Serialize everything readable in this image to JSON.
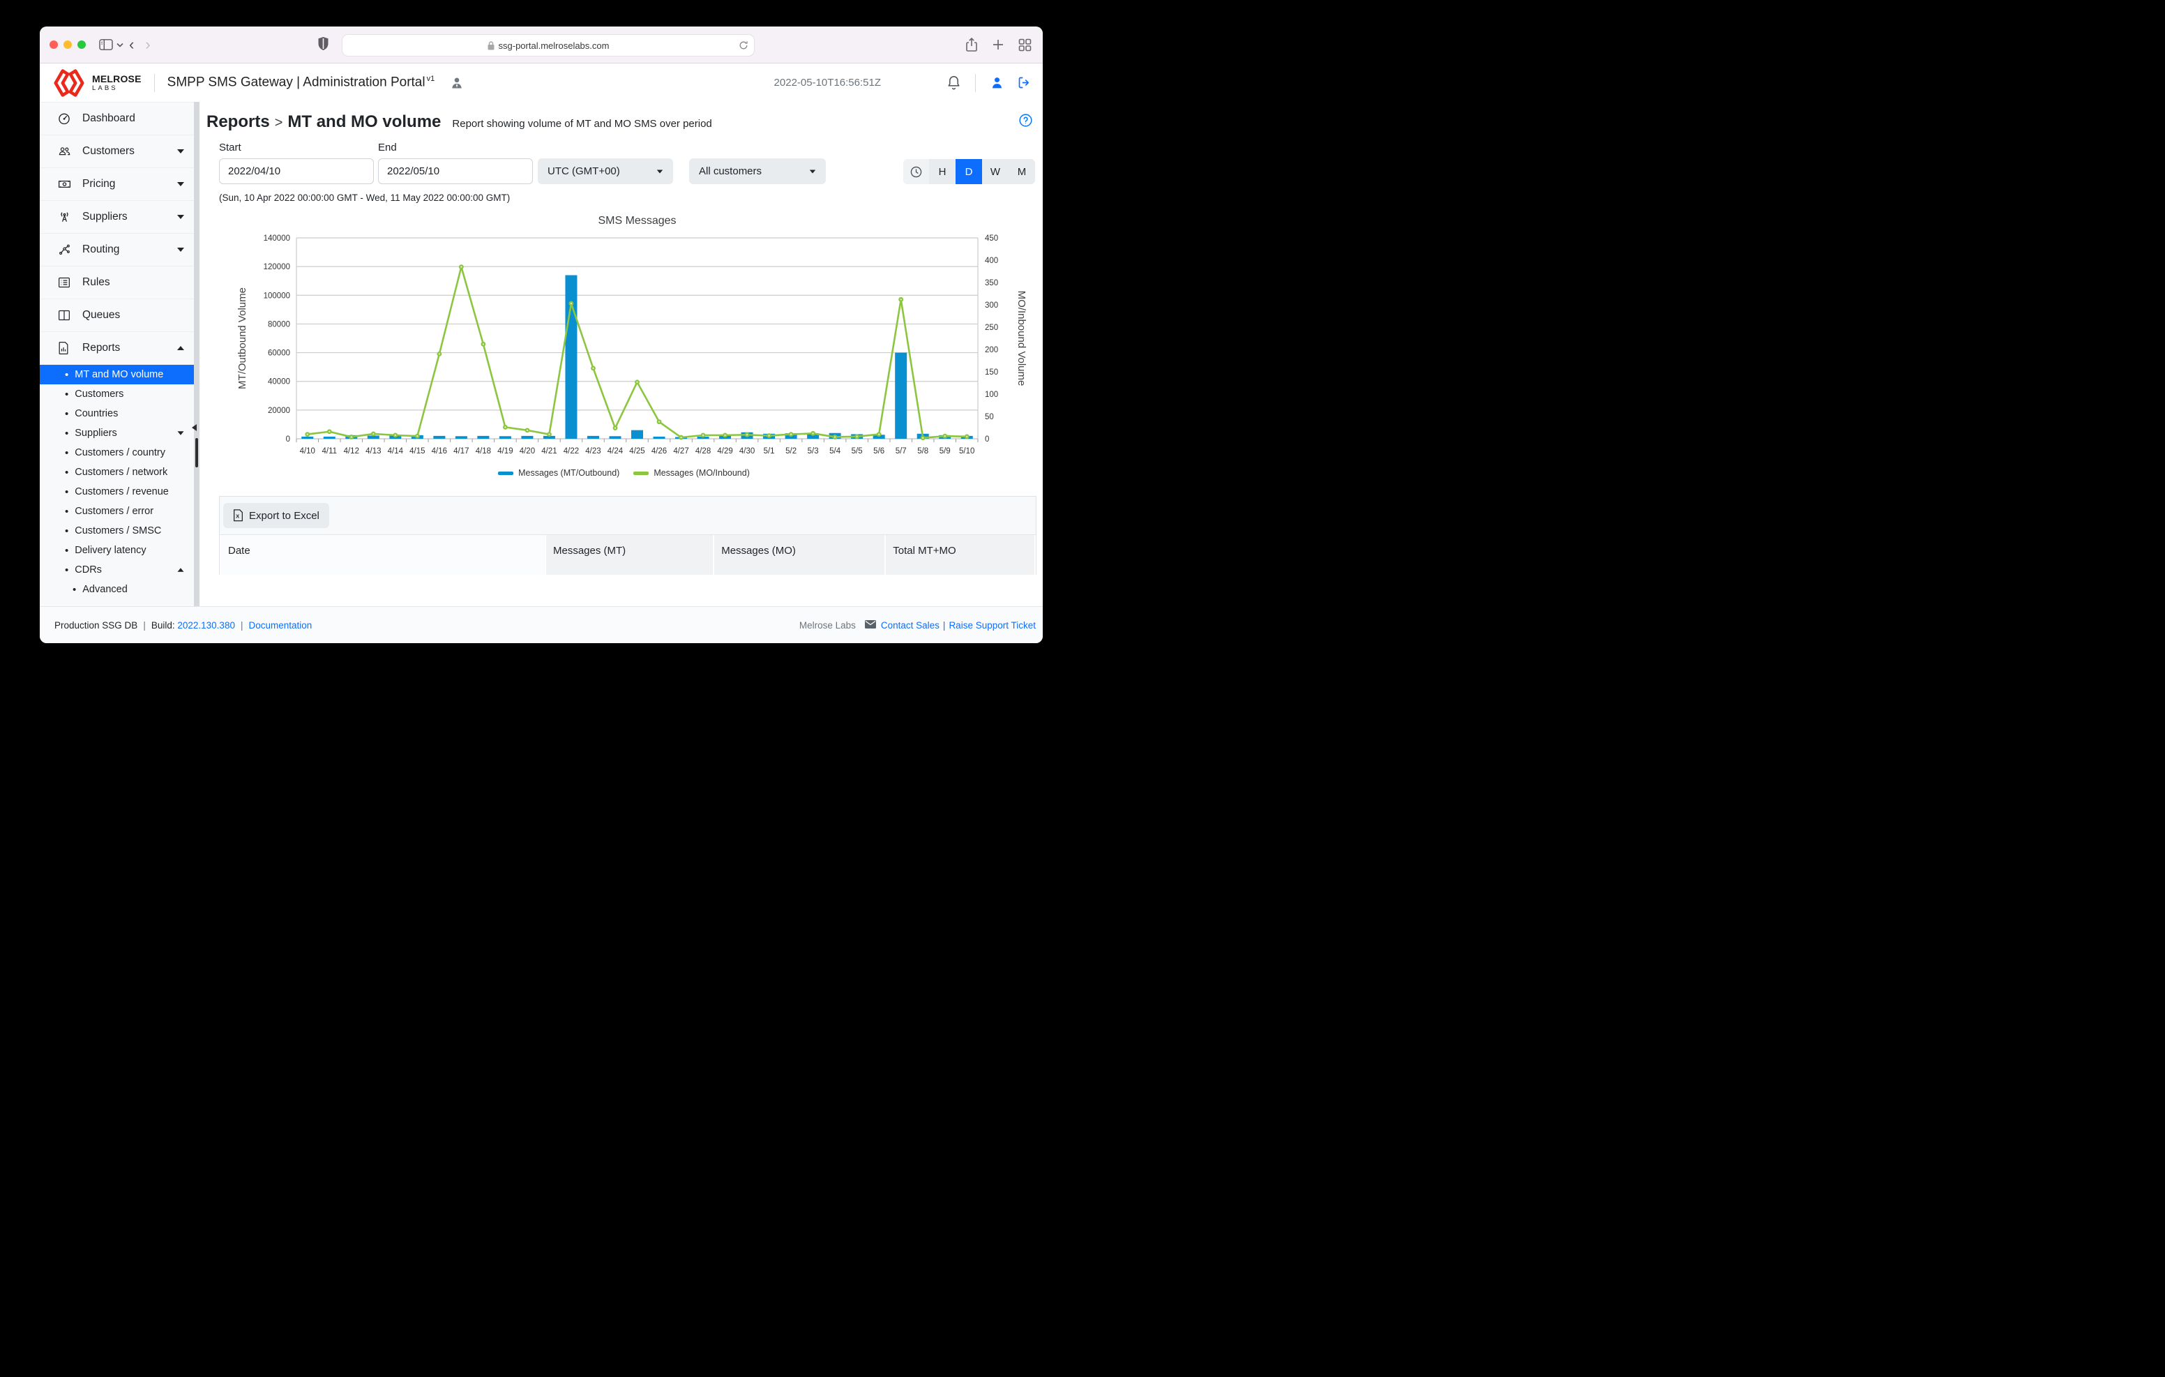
{
  "browser": {
    "url": "ssg-portal.melroselabs.com"
  },
  "header": {
    "brand_top": "MELROSE",
    "brand_bottom": "LABS",
    "title": "SMPP SMS Gateway | Administration Portal",
    "version": "v1",
    "timestamp": "2022-05-10T16:56:51Z"
  },
  "sidebar": {
    "items": [
      {
        "label": "Dashboard",
        "icon": "gauge"
      },
      {
        "label": "Customers",
        "icon": "users",
        "caret": "down"
      },
      {
        "label": "Pricing",
        "icon": "cash",
        "caret": "down"
      },
      {
        "label": "Suppliers",
        "icon": "antenna",
        "caret": "down"
      },
      {
        "label": "Routing",
        "icon": "network",
        "caret": "down"
      },
      {
        "label": "Rules",
        "icon": "list"
      },
      {
        "label": "Queues",
        "icon": "columns"
      },
      {
        "label": "Reports",
        "icon": "report",
        "caret": "up",
        "expanded": true
      }
    ],
    "reports_children": [
      {
        "label": "MT and MO volume",
        "selected": true
      },
      {
        "label": "Customers"
      },
      {
        "label": "Countries"
      },
      {
        "label": "Suppliers",
        "caret": "down"
      },
      {
        "label": "Customers / country"
      },
      {
        "label": "Customers / network"
      },
      {
        "label": "Customers / revenue"
      },
      {
        "label": "Customers / error"
      },
      {
        "label": "Customers / SMSC"
      },
      {
        "label": "Delivery latency"
      },
      {
        "label": "CDRs",
        "caret": "up"
      },
      {
        "label": "Advanced",
        "level": 2
      }
    ]
  },
  "page": {
    "breadcrumb": "Reports",
    "crumb_sep": ">",
    "title": "MT and MO volume",
    "subtitle": "Report showing volume of MT and MO SMS over period"
  },
  "filters": {
    "start_label": "Start",
    "start_value": "2022/04/10",
    "end_label": "End",
    "end_value": "2022/05/10",
    "timezone": "UTC (GMT+00)",
    "customer": "All customers",
    "range_note": "(Sun, 10 Apr 2022 00:00:00 GMT - Wed, 11 May 2022 00:00:00 GMT)",
    "period_buttons": [
      "H",
      "D",
      "W",
      "M"
    ],
    "period_selected": "D"
  },
  "chart_data": {
    "type": "bar+line",
    "title": "SMS Messages",
    "categories": [
      "4/10",
      "4/11",
      "4/12",
      "4/13",
      "4/14",
      "4/15",
      "4/16",
      "4/17",
      "4/18",
      "4/19",
      "4/20",
      "4/21",
      "4/22",
      "4/23",
      "4/24",
      "4/25",
      "4/26",
      "4/27",
      "4/28",
      "4/29",
      "4/30",
      "5/1",
      "5/2",
      "5/3",
      "5/4",
      "5/5",
      "5/6",
      "5/7",
      "5/8",
      "5/9",
      "5/10"
    ],
    "series": [
      {
        "name": "Messages (MT/Outbound)",
        "type": "bar",
        "axis": "left",
        "values": [
          1500,
          1500,
          2500,
          2200,
          2200,
          2500,
          2000,
          1800,
          2000,
          1800,
          2000,
          2000,
          114000,
          2000,
          1800,
          6000,
          1500,
          1200,
          1500,
          2000,
          4500,
          3500,
          3800,
          3800,
          4000,
          3200,
          2800,
          60000,
          3500,
          2500,
          2000
        ]
      },
      {
        "name": "Messages (MO/Inbound)",
        "type": "line",
        "axis": "right",
        "values": [
          10,
          16,
          4,
          11,
          8,
          6,
          190,
          385,
          212,
          26,
          19,
          10,
          303,
          158,
          24,
          127,
          38,
          3,
          8,
          8,
          9,
          7,
          10,
          12,
          4,
          5,
          10,
          312,
          2,
          6,
          5
        ]
      }
    ],
    "ylabel_left": "MT/Outbound Volume",
    "ylabel_right": "MO/Inbound Volume",
    "ylim_left": [
      0,
      140000
    ],
    "ytick_step_left": 20000,
    "ylim_right": [
      0,
      450
    ],
    "ytick_step_right": 50,
    "grid": true,
    "legend_position": "bottom",
    "colors": {
      "bar_blue": "#0A8FD0",
      "line_green": "#8CC63F"
    }
  },
  "table": {
    "export_label": "Export to Excel",
    "columns": [
      "Date",
      "Messages (MT)",
      "Messages (MO)",
      "Total MT+MO"
    ]
  },
  "footer": {
    "environment": "Production SSG DB",
    "build_label": "Build:",
    "build_value": "2022.130.380",
    "docs": "Documentation",
    "company": "Melrose Labs",
    "contact": "Contact Sales",
    "link_sep": "|",
    "support": "Raise Support Ticket"
  }
}
